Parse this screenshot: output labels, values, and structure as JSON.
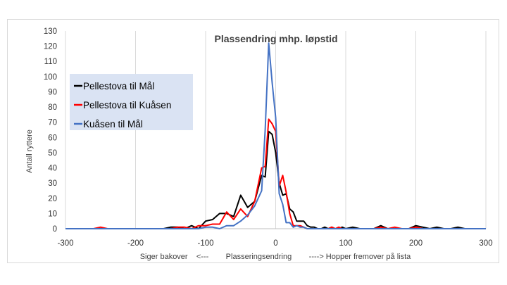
{
  "chart_data": {
    "type": "line",
    "title": "Plassendring mhp. løpstid",
    "ylabel": "Antall ryttere",
    "xlabel": "Siger bakover    <---        Plasseringsendring        ----> Hopper fremover på lista",
    "xlim": [
      -300,
      300
    ],
    "ylim": [
      0,
      130
    ],
    "xticks": [
      -300,
      -200,
      -100,
      0,
      100,
      200,
      300
    ],
    "yticks": [
      0,
      10,
      20,
      30,
      40,
      50,
      60,
      70,
      80,
      90,
      100,
      110,
      120,
      130
    ],
    "grid": "vertical",
    "legend_position": "upper-left",
    "x": [
      -300,
      -290,
      -280,
      -270,
      -260,
      -250,
      -240,
      -230,
      -220,
      -210,
      -200,
      -190,
      -180,
      -170,
      -160,
      -150,
      -140,
      -130,
      -120,
      -110,
      -100,
      -90,
      -80,
      -70,
      -60,
      -50,
      -40,
      -30,
      -20,
      -15,
      -10,
      -5,
      0,
      5,
      10,
      15,
      20,
      25,
      30,
      35,
      40,
      45,
      50,
      55,
      60,
      65,
      70,
      75,
      80,
      85,
      90,
      95,
      100,
      110,
      120,
      130,
      140,
      150,
      160,
      170,
      180,
      190,
      200,
      210,
      220,
      230,
      240,
      250,
      260,
      270,
      280,
      290,
      300
    ],
    "series": [
      {
        "name": "Pellestova til Mål",
        "color": "#000000",
        "values": [
          0,
          0,
          0,
          0,
          0,
          0,
          0,
          0,
          0,
          0,
          0,
          0,
          0,
          0,
          0,
          1,
          1,
          0,
          2,
          0,
          5,
          6,
          10,
          10,
          8,
          22,
          14,
          18,
          35,
          34,
          64,
          62,
          50,
          30,
          22,
          23,
          13,
          11,
          5,
          5,
          5,
          2,
          1,
          1,
          0,
          0,
          1,
          0,
          1,
          0,
          0,
          1,
          0,
          1,
          0,
          0,
          0,
          2,
          0,
          0,
          0,
          0,
          2,
          1,
          0,
          1,
          0,
          0,
          1,
          0,
          0,
          0,
          0
        ]
      },
      {
        "name": "Pellestova til Kuåsen",
        "color": "#ff0000",
        "values": [
          0,
          0,
          0,
          0,
          0,
          1,
          0,
          0,
          0,
          0,
          0,
          0,
          0,
          0,
          0,
          0,
          1,
          1,
          0,
          2,
          2,
          3,
          3,
          11,
          6,
          13,
          8,
          18,
          40,
          41,
          72,
          69,
          64,
          28,
          35,
          24,
          10,
          2,
          2,
          2,
          1,
          0,
          0,
          0,
          0,
          0,
          0,
          0,
          1,
          0,
          1,
          0,
          0,
          0,
          0,
          0,
          0,
          1,
          0,
          1,
          0,
          0,
          1,
          0,
          0,
          0,
          0,
          0,
          0,
          0,
          0,
          0,
          0
        ]
      },
      {
        "name": "Kuåsen til Mål",
        "color": "#4472c4",
        "values": [
          0,
          0,
          0,
          0,
          0,
          0,
          0,
          0,
          0,
          0,
          0,
          0,
          0,
          0,
          0,
          0,
          0,
          0,
          0,
          0,
          1,
          1,
          0,
          2,
          2,
          5,
          9,
          15,
          25,
          65,
          122,
          96,
          73,
          23,
          16,
          4,
          4,
          1,
          2,
          1,
          1,
          0,
          0,
          0,
          0,
          0,
          0,
          0,
          0,
          0,
          0,
          0,
          0,
          0,
          0,
          0,
          0,
          0,
          0,
          0,
          0,
          0,
          0,
          0,
          0,
          0,
          0,
          0,
          0,
          0,
          0,
          0,
          0
        ]
      }
    ]
  }
}
